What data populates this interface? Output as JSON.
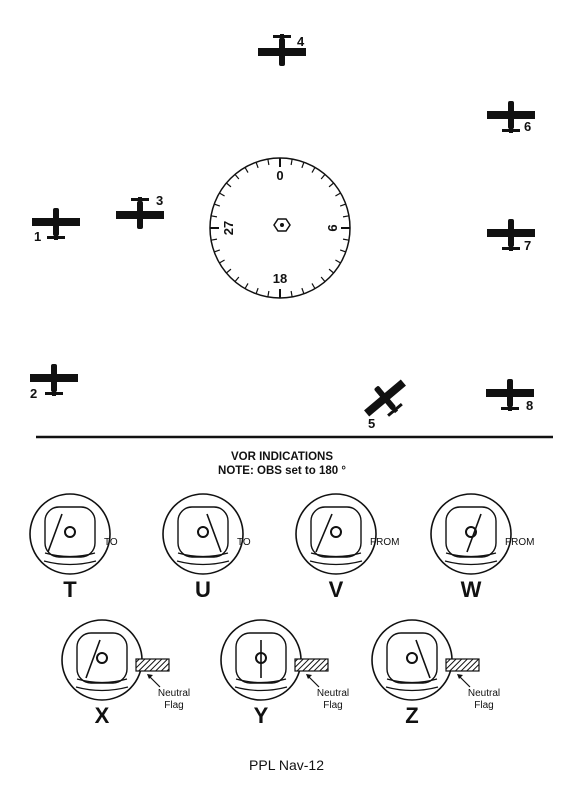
{
  "aircraft": [
    {
      "id": "1",
      "label": "1"
    },
    {
      "id": "2",
      "label": "2"
    },
    {
      "id": "3",
      "label": "3"
    },
    {
      "id": "4",
      "label": "4"
    },
    {
      "id": "5",
      "label": "5"
    },
    {
      "id": "6",
      "label": "6"
    },
    {
      "id": "7",
      "label": "7"
    },
    {
      "id": "8",
      "label": "8"
    }
  ],
  "compass": {
    "north": "0",
    "east": "9",
    "south": "18",
    "west": "27"
  },
  "section": {
    "title": "VOR INDICATIONS",
    "note": "NOTE: OBS set to 180 °"
  },
  "indicators": [
    {
      "letter": "T",
      "flag": "TO"
    },
    {
      "letter": "U",
      "flag": "TO"
    },
    {
      "letter": "V",
      "flag": "FROM"
    },
    {
      "letter": "W",
      "flag": "FROM"
    },
    {
      "letter": "X",
      "flag_line1": "Neutral",
      "flag_line2": "Flag"
    },
    {
      "letter": "Y",
      "flag_line1": "Neutral",
      "flag_line2": "Flag"
    },
    {
      "letter": "Z",
      "flag_line1": "Neutral",
      "flag_line2": "Flag"
    }
  ],
  "footer": "PPL Nav-12",
  "colors": {
    "ink": "#111111",
    "background": "#ffffff"
  }
}
